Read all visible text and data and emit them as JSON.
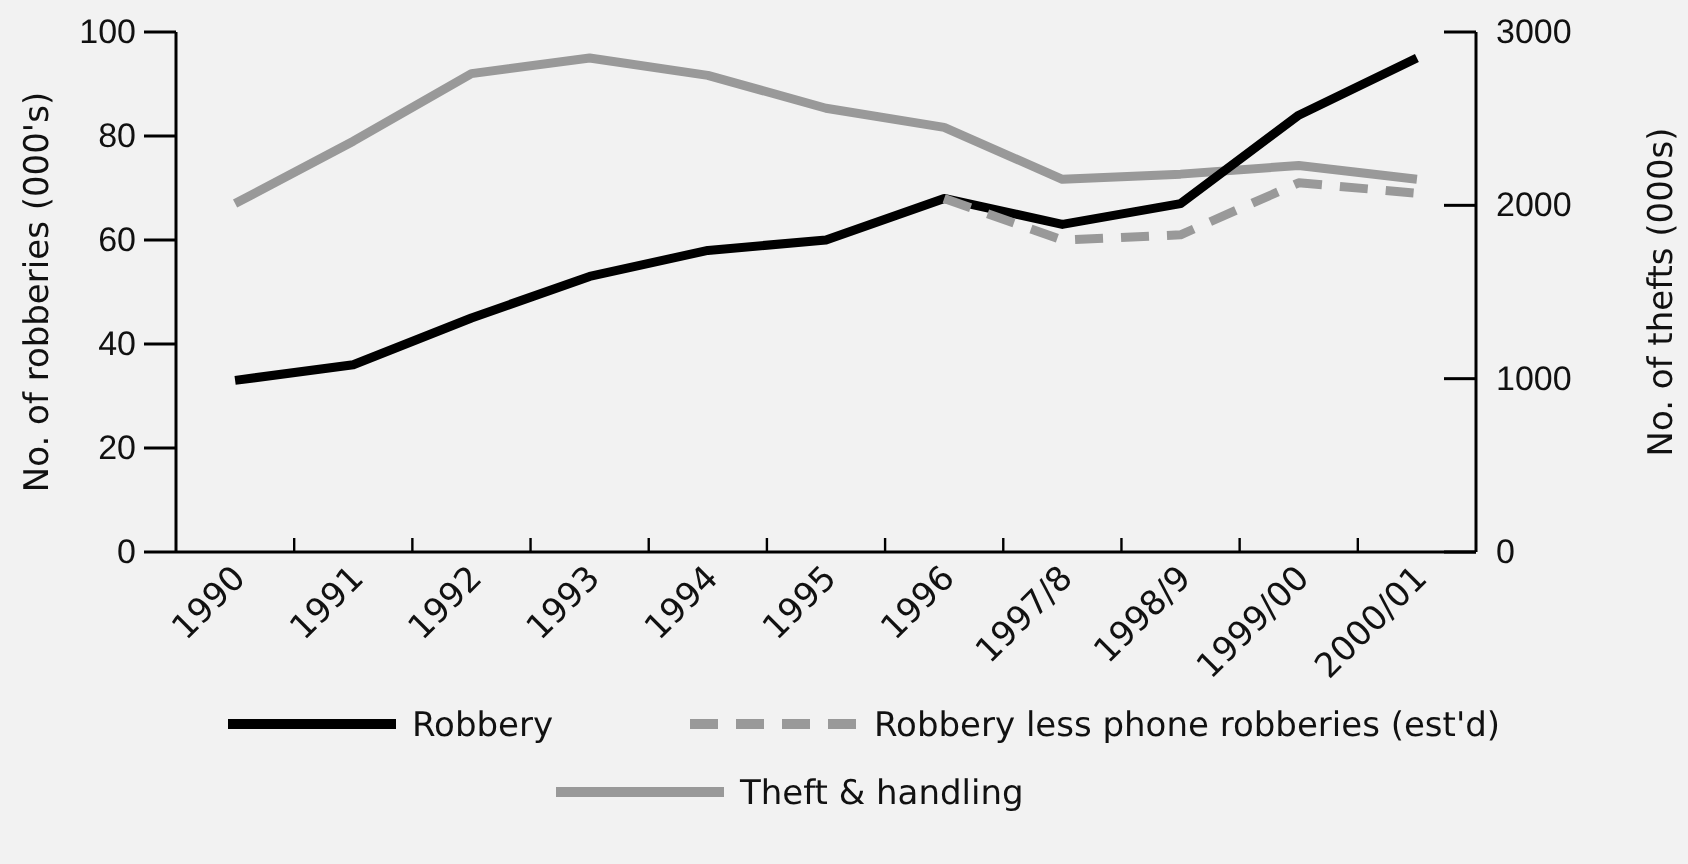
{
  "chart_data": {
    "type": "line",
    "categories": [
      "1990",
      "1991",
      "1992",
      "1993",
      "1994",
      "1995",
      "1996",
      "1997/8",
      "1998/9",
      "1999/00",
      "2000/01"
    ],
    "ylabel": "No. of robberies (000's)",
    "y2label": "No. of thefts (000s)",
    "ylim": [
      0,
      100
    ],
    "yticks": [
      0,
      20,
      40,
      60,
      80,
      100
    ],
    "y2lim": [
      0,
      3000
    ],
    "y2ticks": [
      0,
      1000,
      2000,
      3000
    ],
    "legend": "bottom",
    "grid": false,
    "series": [
      {
        "name": "Robbery",
        "color": "#000000",
        "values": [
          33,
          36,
          45,
          53,
          58,
          60,
          68,
          63,
          67,
          84,
          95
        ]
      },
      {
        "name": "Robbery less phone robberies (est'd)",
        "color": "#999999",
        "line_style": "dashed",
        "values": [
          null,
          null,
          null,
          null,
          null,
          null,
          68,
          60,
          61,
          71,
          69
        ]
      },
      {
        "name": "Theft & handling",
        "color": "#999999",
        "axis": "y2",
        "values": [
          2010,
          2370,
          2760,
          2850,
          2750,
          2560,
          2450,
          2150,
          2180,
          2230,
          2150
        ]
      }
    ]
  }
}
